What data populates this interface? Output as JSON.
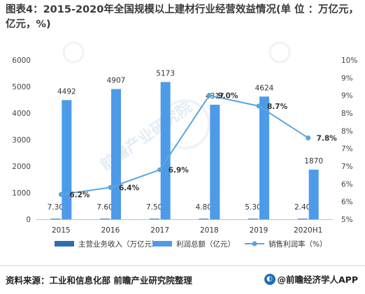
{
  "title": "图表4：2015-2020年全国规模以上建材行业经营效益情况(单 位 ：万亿元，亿元，%)",
  "chart_data": {
    "type": "bar",
    "categories": [
      "2015",
      "2016",
      "2017",
      "2018",
      "2019",
      "2020H1"
    ],
    "series": [
      {
        "name": "主营业务收入（万亿元）",
        "type": "bar",
        "axis": "left",
        "color": "#2e6db4",
        "values": [
          7.3,
          7.6,
          7.5,
          4.8,
          5.3,
          2.4
        ],
        "labels": [
          "7.30",
          "7.60",
          "7.50",
          "4.80",
          "5.30",
          "2.40"
        ]
      },
      {
        "name": "利润总额（亿元）",
        "type": "bar",
        "axis": "left",
        "color": "#4d9be8",
        "values": [
          4492,
          4907,
          5173,
          4317,
          4624,
          1870
        ],
        "labels": [
          "4492",
          "4907",
          "5173",
          "4317",
          "4624",
          "1870"
        ]
      },
      {
        "name": "销售利润率（%）",
        "type": "line",
        "axis": "right",
        "color": "#5aa5dc",
        "values": [
          6.2,
          6.4,
          6.9,
          9.0,
          8.7,
          7.8
        ],
        "labels": [
          "6.2%",
          "6.4%",
          "6.9%",
          "9.0%",
          "8.7%",
          "7.8%"
        ]
      }
    ],
    "y_left": {
      "min": 0,
      "max": 6000,
      "ticks": [
        0,
        1000,
        2000,
        3000,
        4000,
        5000,
        6000
      ],
      "tick_labels": [
        "0",
        "1000",
        "2000",
        "3000",
        "4000",
        "5000",
        "6000"
      ]
    },
    "y_right": {
      "min": 5.5,
      "max": 10,
      "ticks": [
        5.5,
        6,
        6.5,
        7,
        7.5,
        8,
        8.5,
        9,
        9.5,
        10
      ],
      "tick_labels": [
        "5%",
        "6%",
        "6%",
        "7%",
        "7%",
        "8%",
        "8%",
        "9%",
        "9%",
        "10%"
      ]
    },
    "grid": false,
    "legend_position": "bottom"
  },
  "footer": {
    "source": "资料来源：工业和信息化部 前瞻产业研究院整理",
    "brand": "@前瞻经济学人APP",
    "brand_logo_icon": "qianzhan-logo-icon"
  }
}
